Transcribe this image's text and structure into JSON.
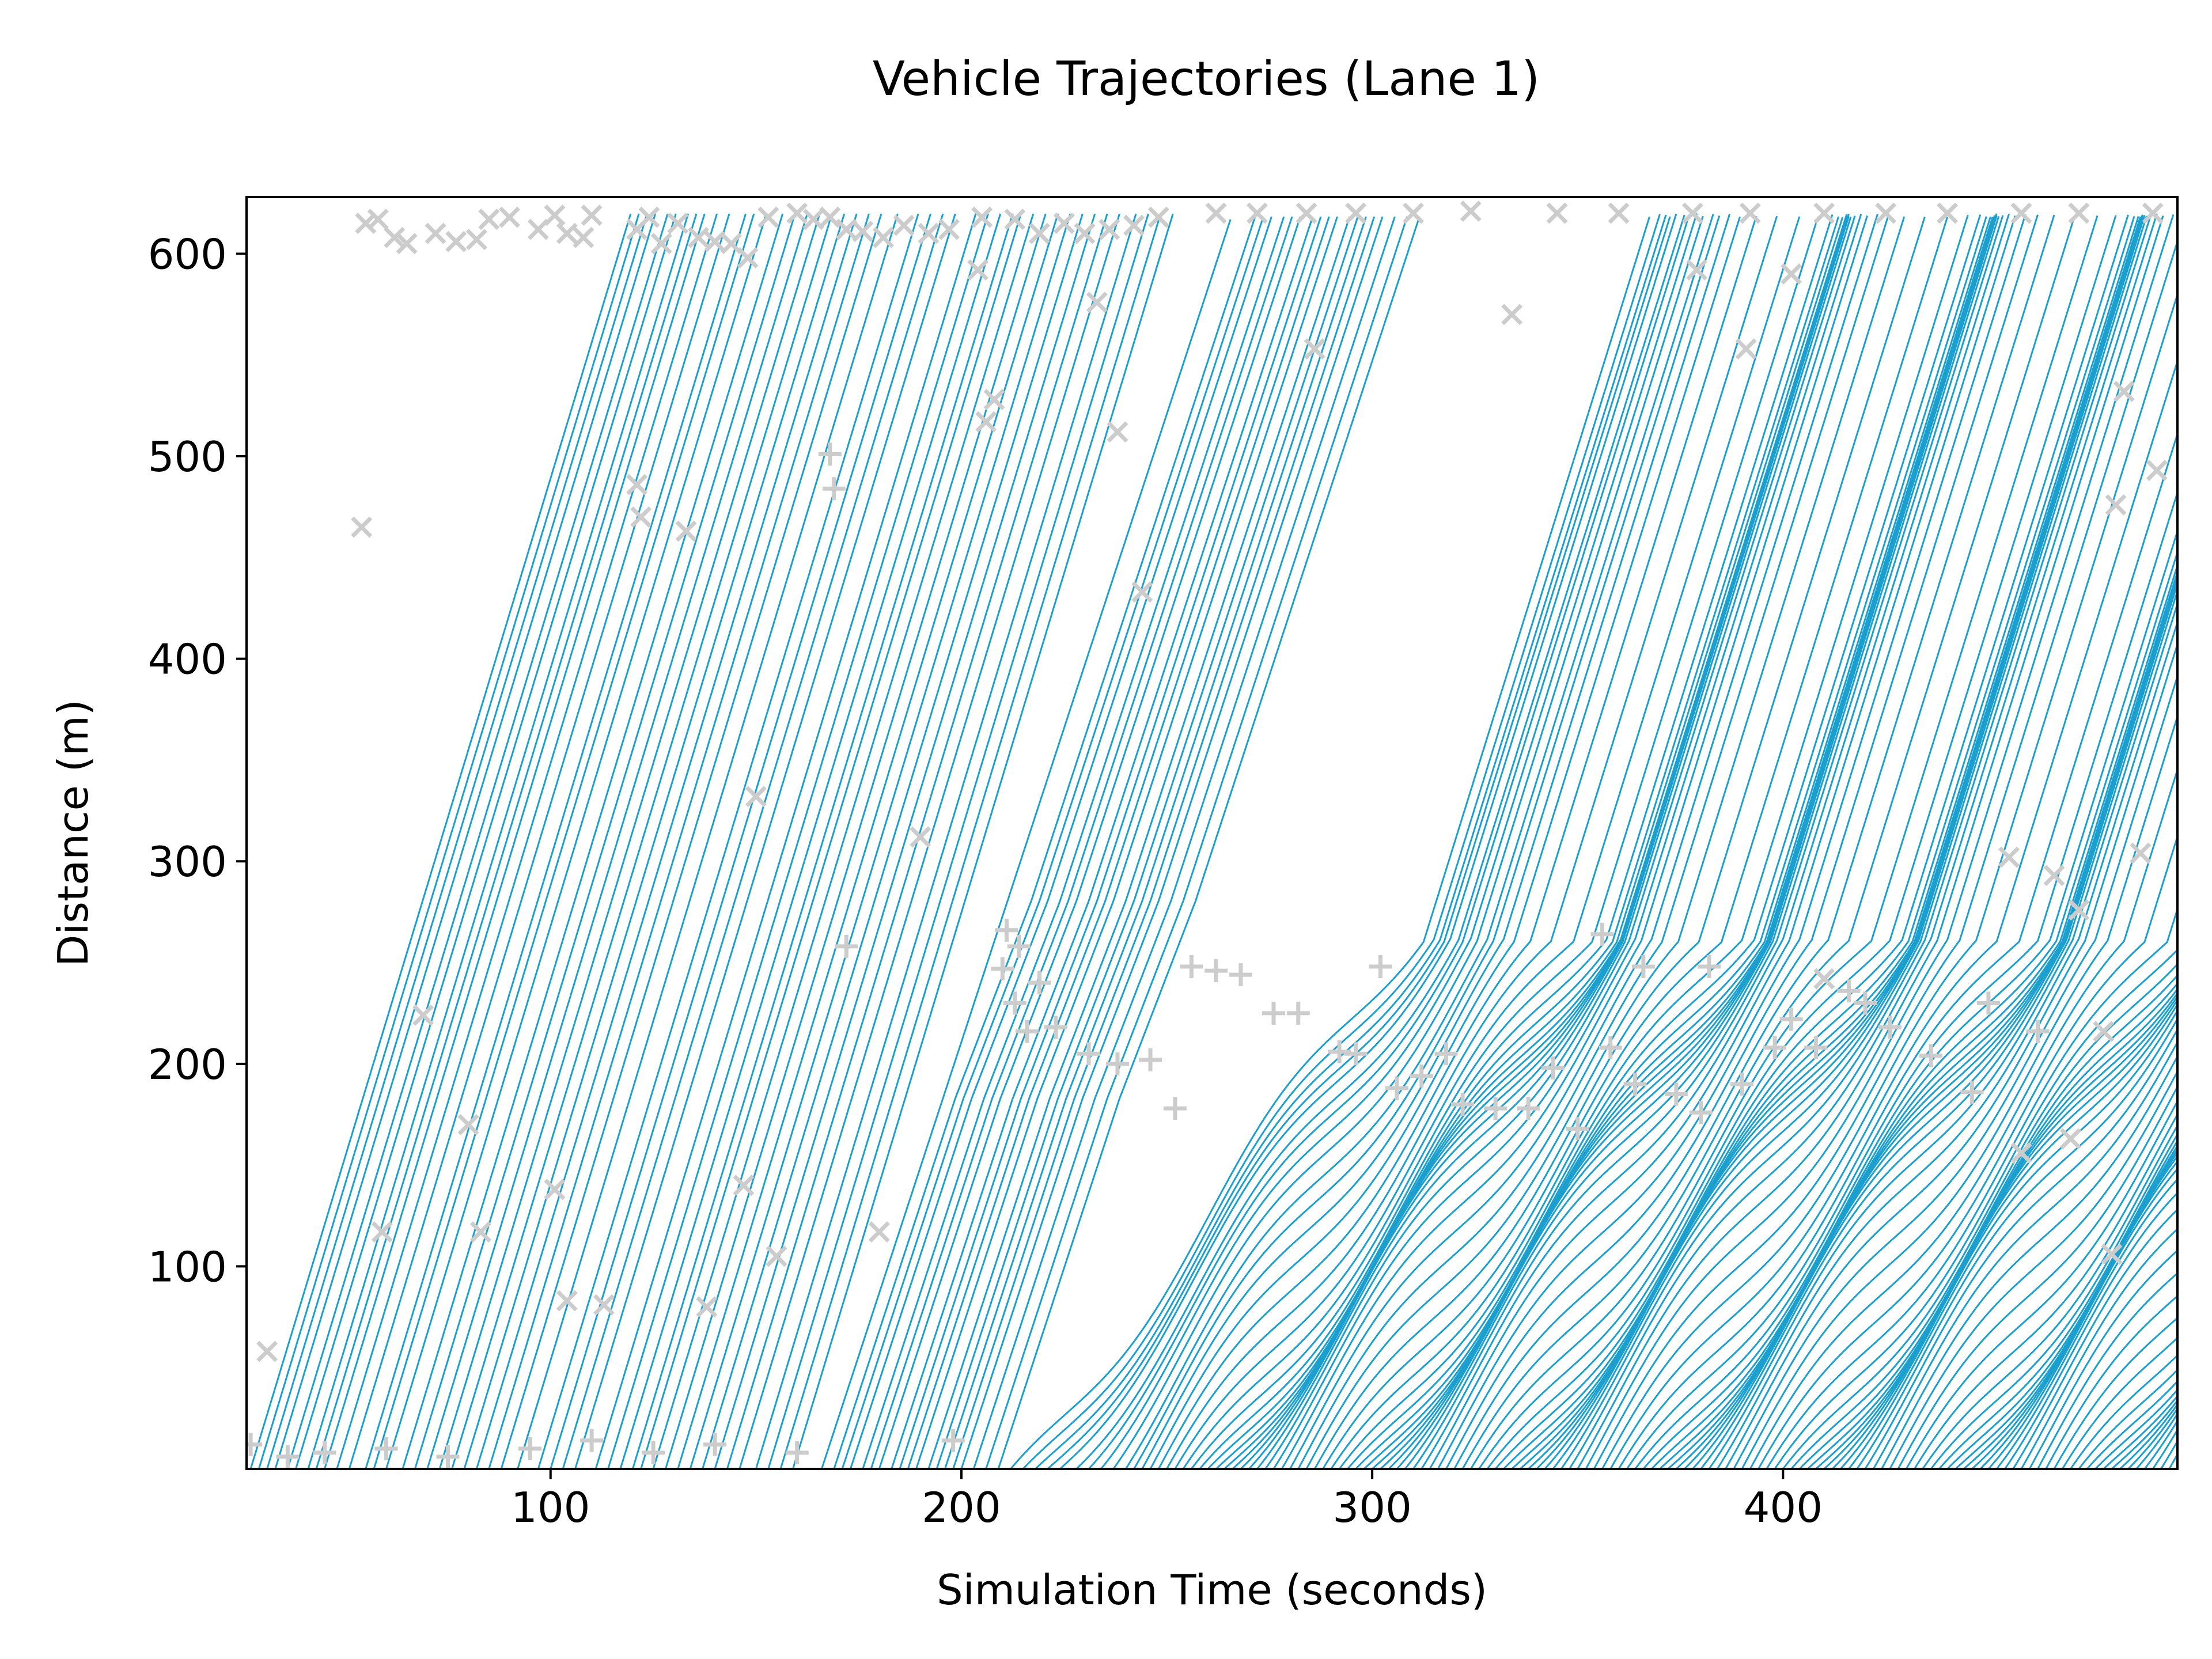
{
  "chart_data": {
    "type": "line",
    "title": "Vehicle Trajectories (Lane 1)",
    "xlabel": "Simulation Time (seconds)",
    "ylabel": "Distance (m)",
    "xlim": [
      26,
      496
    ],
    "ylim": [
      0,
      628
    ],
    "x_ticks": [
      100,
      200,
      300,
      400
    ],
    "y_ticks": [
      100,
      200,
      300,
      400,
      500,
      600
    ],
    "grid": false,
    "legend": "none",
    "colors": {
      "trajectory": "#1a9fcf",
      "marker": "#cccccc",
      "axes": "#000000"
    },
    "lane_length_m": 620,
    "description_series": "Vehicle trajectories (distance vs time); free-flow slope about 6.7 m/s in the early period, with stop-and-go congestion waves near 170-250 m from about 210 s onward",
    "trajectory_start_times": [
      27,
      29,
      31,
      33,
      36,
      38,
      41,
      43,
      45,
      48,
      51,
      55,
      57,
      60,
      64,
      67,
      70,
      73,
      76,
      79,
      82,
      85,
      88,
      92,
      97,
      100,
      103,
      106,
      111,
      114,
      117,
      120,
      122,
      125,
      128,
      131,
      134,
      137,
      140,
      143,
      146,
      150,
      153,
      156,
      159,
      166,
      169,
      171,
      173,
      176,
      178,
      180,
      183,
      185,
      187,
      189,
      192,
      194,
      196,
      198,
      200,
      203,
      206,
      209,
      212,
      215,
      218,
      221,
      224,
      228,
      231,
      234,
      237,
      240,
      242,
      244,
      246,
      248,
      250,
      252,
      254,
      256,
      258,
      260,
      262,
      264,
      266,
      268,
      270,
      272,
      274,
      276,
      278,
      280,
      282,
      284,
      286,
      288,
      290,
      292,
      294,
      296,
      298,
      300,
      302,
      304,
      306,
      308,
      310,
      312,
      314,
      316,
      318,
      320,
      322,
      324,
      326,
      328,
      330,
      332,
      334,
      336,
      338,
      340,
      342,
      344,
      346,
      348,
      350,
      352,
      354,
      356,
      358,
      360,
      362,
      364,
      366,
      368,
      370,
      372,
      374,
      376,
      378,
      380,
      382,
      384,
      386,
      388,
      390,
      392,
      394,
      396,
      398,
      400,
      402,
      404,
      406,
      408,
      410,
      412,
      414,
      416,
      418,
      420,
      422,
      424,
      426,
      428,
      430,
      432,
      434,
      436,
      438,
      440,
      442,
      444,
      446,
      448,
      450,
      452,
      454,
      456,
      458,
      460,
      462,
      464,
      466,
      468,
      470,
      472,
      474,
      476,
      478,
      480,
      482,
      484,
      486,
      488,
      490,
      492,
      494,
      496
    ],
    "exit_markers_x": [
      [
        55,
        615
      ],
      [
        58,
        617
      ],
      [
        62,
        608
      ],
      [
        65,
        605
      ],
      [
        72,
        610
      ],
      [
        77,
        606
      ],
      [
        82,
        607
      ],
      [
        85,
        617
      ],
      [
        90,
        618
      ],
      [
        97,
        612
      ],
      [
        101,
        619
      ],
      [
        104,
        610
      ],
      [
        108,
        608
      ],
      [
        110,
        619
      ],
      [
        121,
        612
      ],
      [
        124,
        618
      ],
      [
        127,
        605
      ],
      [
        131,
        615
      ],
      [
        136,
        608
      ],
      [
        140,
        606
      ],
      [
        144,
        605
      ],
      [
        148,
        598
      ],
      [
        153,
        618
      ],
      [
        160,
        620
      ],
      [
        164,
        617
      ],
      [
        168,
        618
      ],
      [
        172,
        612
      ],
      [
        176,
        611
      ],
      [
        181,
        608
      ],
      [
        186,
        614
      ],
      [
        192,
        610
      ],
      [
        197,
        612
      ],
      [
        205,
        618
      ],
      [
        213,
        617
      ],
      [
        219,
        610
      ],
      [
        225,
        615
      ],
      [
        230,
        610
      ],
      [
        236,
        612
      ],
      [
        242,
        614
      ],
      [
        248,
        618
      ],
      [
        262,
        620
      ],
      [
        272,
        620
      ],
      [
        284,
        620
      ],
      [
        296,
        620
      ],
      [
        310,
        620
      ],
      [
        324,
        621
      ],
      [
        345,
        620
      ],
      [
        360,
        620
      ],
      [
        378,
        620
      ],
      [
        392,
        620
      ],
      [
        410,
        620
      ],
      [
        425,
        620
      ],
      [
        440,
        620
      ],
      [
        458,
        620
      ],
      [
        472,
        620
      ],
      [
        490,
        620
      ]
    ],
    "other_markers_x": [
      [
        31,
        58
      ],
      [
        54,
        465
      ],
      [
        59,
        117
      ],
      [
        69,
        224
      ],
      [
        80,
        170
      ],
      [
        83,
        117
      ],
      [
        101,
        138
      ],
      [
        104,
        83
      ],
      [
        113,
        81
      ],
      [
        121,
        486
      ],
      [
        122,
        470
      ],
      [
        133,
        463
      ],
      [
        138,
        80
      ],
      [
        147,
        140
      ],
      [
        150,
        332
      ],
      [
        155,
        105
      ],
      [
        180,
        117
      ],
      [
        190,
        312
      ],
      [
        204,
        592
      ],
      [
        206,
        517
      ],
      [
        208,
        528
      ],
      [
        233,
        576
      ],
      [
        238,
        512
      ],
      [
        244,
        433
      ],
      [
        286,
        553
      ],
      [
        334,
        570
      ],
      [
        379,
        592
      ],
      [
        391,
        553
      ],
      [
        402,
        590
      ],
      [
        410,
        242
      ],
      [
        455,
        302
      ],
      [
        458,
        156
      ],
      [
        466,
        293
      ],
      [
        470,
        163
      ],
      [
        472,
        276
      ],
      [
        478,
        216
      ],
      [
        480,
        106
      ],
      [
        481,
        476
      ],
      [
        483,
        532
      ],
      [
        487,
        304
      ],
      [
        491,
        493
      ]
    ],
    "entry_markers_plus": [
      [
        27,
        12
      ],
      [
        36,
        6
      ],
      [
        45,
        8
      ],
      [
        60,
        10
      ],
      [
        75,
        6
      ],
      [
        95,
        10
      ],
      [
        110,
        14
      ],
      [
        125,
        8
      ],
      [
        140,
        12
      ],
      [
        160,
        8
      ],
      [
        168,
        501
      ],
      [
        169,
        484
      ],
      [
        172,
        258
      ],
      [
        198,
        14
      ],
      [
        210,
        247
      ],
      [
        211,
        266
      ],
      [
        213,
        230
      ],
      [
        214,
        258
      ],
      [
        216,
        216
      ],
      [
        219,
        240
      ],
      [
        223,
        218
      ],
      [
        231,
        205
      ],
      [
        238,
        200
      ],
      [
        246,
        202
      ],
      [
        252,
        178
      ],
      [
        256,
        248
      ],
      [
        262,
        246
      ],
      [
        268,
        244
      ],
      [
        276,
        225
      ],
      [
        282,
        225
      ],
      [
        292,
        206
      ],
      [
        296,
        205
      ],
      [
        302,
        248
      ],
      [
        306,
        188
      ],
      [
        312,
        194
      ],
      [
        318,
        205
      ],
      [
        322,
        180
      ],
      [
        330,
        178
      ],
      [
        338,
        178
      ],
      [
        344,
        198
      ],
      [
        350,
        168
      ],
      [
        356,
        264
      ],
      [
        358,
        208
      ],
      [
        364,
        190
      ],
      [
        366,
        248
      ],
      [
        374,
        185
      ],
      [
        380,
        176
      ],
      [
        382,
        248
      ],
      [
        390,
        190
      ],
      [
        398,
        208
      ],
      [
        402,
        222
      ],
      [
        408,
        208
      ],
      [
        416,
        236
      ],
      [
        420,
        230
      ],
      [
        426,
        218
      ],
      [
        436,
        204
      ],
      [
        446,
        186
      ],
      [
        450,
        230
      ],
      [
        462,
        216
      ]
    ]
  }
}
